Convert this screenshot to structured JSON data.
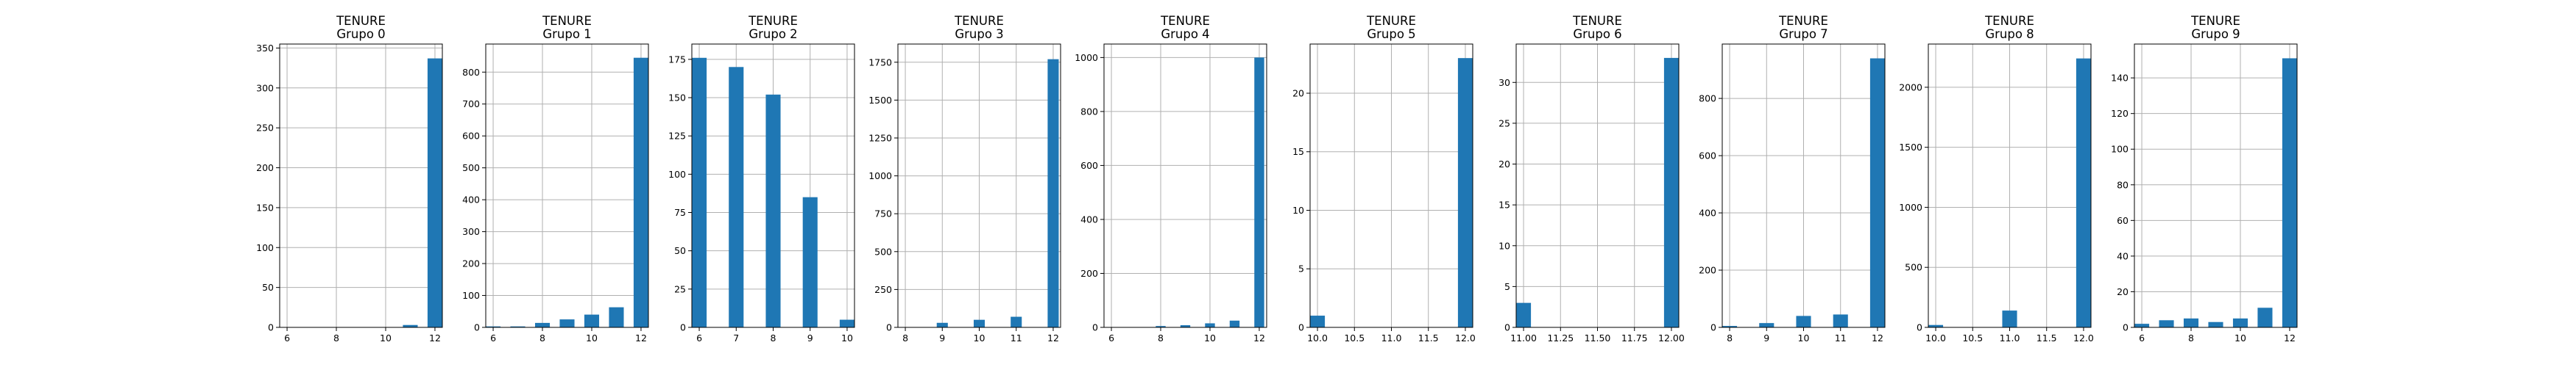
{
  "figure": {
    "bar_color": "#1f77b4",
    "background": "#ffffff"
  },
  "chart_data": [
    {
      "type": "bar",
      "title": "TENURE",
      "subtitle": "Grupo 0",
      "bins": [
        6,
        7,
        8,
        9,
        10,
        11,
        12
      ],
      "values": [
        0,
        0,
        0,
        0,
        0,
        3,
        337
      ],
      "xlim": [
        5.7,
        12.3
      ],
      "ylim": [
        0,
        355
      ],
      "xticks": [
        6,
        8,
        10,
        12
      ],
      "xtick_labels": [
        "6",
        "8",
        "10",
        "12"
      ],
      "yticks": [
        0,
        50,
        100,
        150,
        200,
        250,
        300,
        350
      ],
      "ytick_labels": [
        "0",
        "50",
        "100",
        "150",
        "200",
        "250",
        "300",
        "350"
      ],
      "grid": true
    },
    {
      "type": "bar",
      "title": "TENURE",
      "subtitle": "Grupo 1",
      "bins": [
        6,
        7,
        8,
        9,
        10,
        11,
        12
      ],
      "values": [
        3,
        3,
        14,
        25,
        40,
        63,
        845
      ],
      "xlim": [
        5.7,
        12.3
      ],
      "ylim": [
        0,
        888
      ],
      "xticks": [
        6,
        8,
        10,
        12
      ],
      "xtick_labels": [
        "6",
        "8",
        "10",
        "12"
      ],
      "yticks": [
        0,
        100,
        200,
        300,
        400,
        500,
        600,
        700,
        800
      ],
      "ytick_labels": [
        "0",
        "100",
        "200",
        "300",
        "400",
        "500",
        "600",
        "700",
        "800"
      ],
      "grid": true
    },
    {
      "type": "bar",
      "title": "TENURE",
      "subtitle": "Grupo 2",
      "bins": [
        6,
        7,
        8,
        9,
        10
      ],
      "values": [
        176,
        170,
        152,
        85,
        5
      ],
      "xlim": [
        5.8,
        10.2
      ],
      "ylim": [
        0,
        185
      ],
      "xticks": [
        6,
        7,
        8,
        9,
        10
      ],
      "xtick_labels": [
        "6",
        "7",
        "8",
        "9",
        "10"
      ],
      "yticks": [
        0,
        25,
        50,
        75,
        100,
        125,
        150,
        175
      ],
      "ytick_labels": [
        "0",
        "25",
        "50",
        "75",
        "100",
        "125",
        "150",
        "175"
      ],
      "grid": true
    },
    {
      "type": "bar",
      "title": "TENURE",
      "subtitle": "Grupo 3",
      "bins": [
        9,
        10,
        11,
        12
      ],
      "values": [
        30,
        50,
        70,
        1770
      ],
      "xlim": [
        7.8,
        12.2
      ],
      "ylim": [
        0,
        1870
      ],
      "xticks": [
        8,
        9,
        10,
        11,
        12
      ],
      "xtick_labels": [
        "8",
        "9",
        "10",
        "11",
        "12"
      ],
      "yticks": [
        0,
        250,
        500,
        750,
        1000,
        1250,
        1500,
        1750
      ],
      "ytick_labels": [
        "0",
        "250",
        "500",
        "750",
        "1000",
        "1250",
        "1500",
        "1750"
      ],
      "grid": true
    },
    {
      "type": "bar",
      "title": "TENURE",
      "subtitle": "Grupo 4",
      "bins": [
        8,
        9,
        10,
        11,
        12
      ],
      "values": [
        5,
        8,
        15,
        25,
        1000
      ],
      "xlim": [
        5.7,
        12.3
      ],
      "ylim": [
        0,
        1050
      ],
      "xticks": [
        6,
        8,
        10,
        12
      ],
      "xtick_labels": [
        "6",
        "8",
        "10",
        "12"
      ],
      "yticks": [
        0,
        200,
        400,
        600,
        800,
        1000
      ],
      "ytick_labels": [
        "0",
        "200",
        "400",
        "600",
        "800",
        "1000"
      ],
      "grid": true
    },
    {
      "type": "bar",
      "title": "TENURE",
      "subtitle": "Grupo 5",
      "bins": [
        10,
        12
      ],
      "values": [
        1,
        23
      ],
      "xlim": [
        9.9,
        12.1
      ],
      "ylim": [
        0,
        24.2
      ],
      "xticks": [
        10,
        10.5,
        11,
        11.5,
        12
      ],
      "xtick_labels": [
        "10.0",
        "10.5",
        "11.0",
        "11.5",
        "12.0"
      ],
      "yticks": [
        0,
        5,
        10,
        15,
        20
      ],
      "ytick_labels": [
        "0",
        "5",
        "10",
        "15",
        "20"
      ],
      "grid": true
    },
    {
      "type": "bar",
      "title": "TENURE",
      "subtitle": "Grupo 6",
      "bins": [
        11,
        12
      ],
      "values": [
        3,
        33
      ],
      "xlim": [
        10.95,
        12.05
      ],
      "ylim": [
        0,
        34.7
      ],
      "xticks": [
        11,
        11.25,
        11.5,
        11.75,
        12
      ],
      "xtick_labels": [
        "11.00",
        "11.25",
        "11.50",
        "11.75",
        "12.00"
      ],
      "yticks": [
        0,
        5,
        10,
        15,
        20,
        25,
        30
      ],
      "ytick_labels": [
        "0",
        "5",
        "10",
        "15",
        "20",
        "25",
        "30"
      ],
      "grid": true
    },
    {
      "type": "bar",
      "title": "TENURE",
      "subtitle": "Grupo 7",
      "bins": [
        8,
        9,
        10,
        11,
        12
      ],
      "values": [
        5,
        15,
        40,
        45,
        940
      ],
      "xlim": [
        7.8,
        12.2
      ],
      "ylim": [
        0,
        990
      ],
      "xticks": [
        8,
        9,
        10,
        11,
        12
      ],
      "xtick_labels": [
        "8",
        "9",
        "10",
        "11",
        "12"
      ],
      "yticks": [
        0,
        200,
        400,
        600,
        800
      ],
      "ytick_labels": [
        "0",
        "200",
        "400",
        "600",
        "800"
      ],
      "grid": true
    },
    {
      "type": "bar",
      "title": "TENURE",
      "subtitle": "Grupo 8",
      "bins": [
        10,
        11,
        12
      ],
      "values": [
        20,
        140,
        2240
      ],
      "xlim": [
        9.9,
        12.1
      ],
      "ylim": [
        0,
        2360
      ],
      "xticks": [
        10,
        10.5,
        11,
        11.5,
        12
      ],
      "xtick_labels": [
        "10.0",
        "10.5",
        "11.0",
        "11.5",
        "12.0"
      ],
      "yticks": [
        0,
        500,
        1000,
        1500,
        2000
      ],
      "ytick_labels": [
        "0",
        "500",
        "1000",
        "1500",
        "2000"
      ],
      "grid": true
    },
    {
      "type": "bar",
      "title": "TENURE",
      "subtitle": "Grupo 9",
      "bins": [
        6,
        7,
        8,
        9,
        10,
        11,
        12
      ],
      "values": [
        2,
        4,
        5,
        3,
        5,
        11,
        151
      ],
      "xlim": [
        5.7,
        12.3
      ],
      "ylim": [
        0,
        159
      ],
      "xticks": [
        6,
        8,
        10,
        12
      ],
      "xtick_labels": [
        "6",
        "8",
        "10",
        "12"
      ],
      "yticks": [
        0,
        20,
        40,
        60,
        80,
        100,
        120,
        140
      ],
      "ytick_labels": [
        "0",
        "20",
        "40",
        "60",
        "80",
        "100",
        "120",
        "140"
      ],
      "grid": true
    }
  ]
}
